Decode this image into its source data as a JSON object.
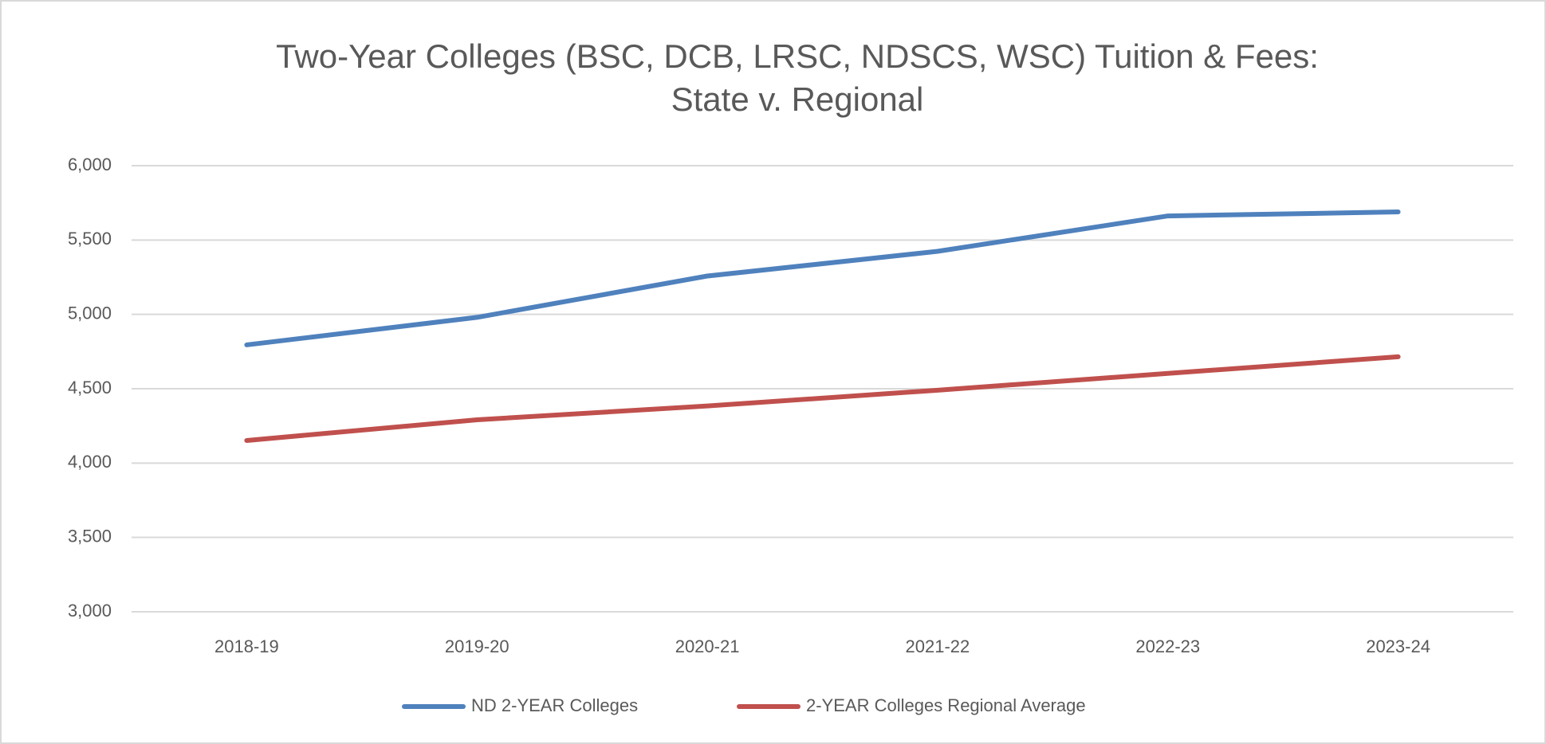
{
  "chart_data": {
    "type": "line",
    "title": [
      "Two-Year Colleges (BSC, DCB, LRSC, NDSCS, WSC) Tuition & Fees:",
      "State v. Regional"
    ],
    "categories": [
      "2018-19",
      "2019-20",
      "2020-21",
      "2021-22",
      "2022-23",
      "2023-24"
    ],
    "series": [
      {
        "name": "ND 2-YEAR Colleges",
        "color": "#4f81bd",
        "values": [
          4795,
          4980,
          5258,
          5424,
          5662,
          5689
        ]
      },
      {
        "name": "2-YEAR Colleges Regional Average",
        "color": "#c0504d",
        "values": [
          4152,
          4291,
          4384,
          4490,
          4603,
          4715
        ]
      }
    ],
    "ylim": [
      3000,
      6000
    ],
    "yticks": [
      {
        "value": 3000,
        "label": "3,000"
      },
      {
        "value": 3500,
        "label": "3,500"
      },
      {
        "value": 4000,
        "label": "4,000"
      },
      {
        "value": 4500,
        "label": "4,500"
      },
      {
        "value": 5000,
        "label": "5,000"
      },
      {
        "value": 5500,
        "label": "5,500"
      },
      {
        "value": 6000,
        "label": "6,000"
      }
    ],
    "grid": true,
    "legend": "bottom"
  }
}
